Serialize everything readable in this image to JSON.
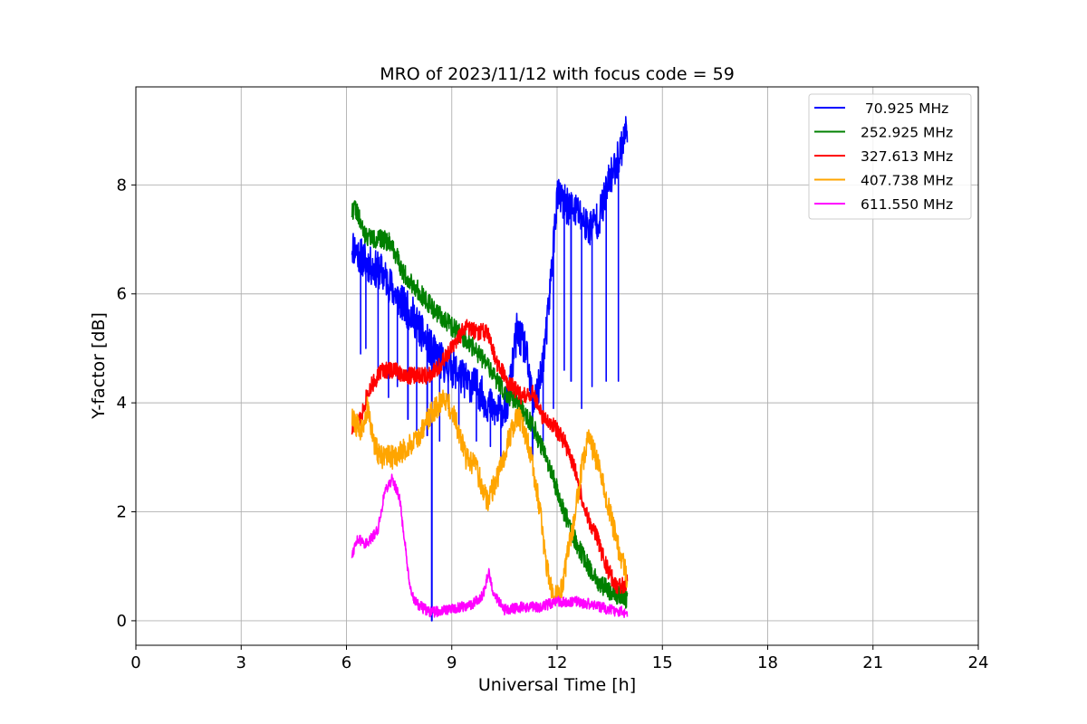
{
  "chart_data": {
    "type": "line",
    "title": "MRO of 2023/11/12 with focus code = 59",
    "xlabel": "Universal Time [h]",
    "ylabel": "Y-factor [dB]",
    "xlim": [
      0,
      24
    ],
    "ylim": [
      -0.45,
      9.8
    ],
    "xticks": [
      0,
      3,
      6,
      9,
      12,
      15,
      18,
      21,
      24
    ],
    "yticks": [
      0,
      2,
      4,
      6,
      8
    ],
    "grid": true,
    "legend_position": "top-right",
    "series": [
      {
        "name": " 70.925 MHz",
        "color": "#0000ff",
        "noise": 0.35,
        "points": [
          [
            6.15,
            6.9
          ],
          [
            6.4,
            6.7
          ],
          [
            6.7,
            6.5
          ],
          [
            7.0,
            6.4
          ],
          [
            7.3,
            6.1
          ],
          [
            7.6,
            5.8
          ],
          [
            7.9,
            5.6
          ],
          [
            8.2,
            5.2
          ],
          [
            8.5,
            4.9
          ],
          [
            8.8,
            4.7
          ],
          [
            9.1,
            4.6
          ],
          [
            9.4,
            4.4
          ],
          [
            9.7,
            4.3
          ],
          [
            10.0,
            4.0
          ],
          [
            10.3,
            3.8
          ],
          [
            10.6,
            4.0
          ],
          [
            10.85,
            5.3
          ],
          [
            11.1,
            5.0
          ],
          [
            11.3,
            4.0
          ],
          [
            11.5,
            4.3
          ],
          [
            11.7,
            5.3
          ],
          [
            11.85,
            6.5
          ],
          [
            12.0,
            7.8
          ],
          [
            12.3,
            7.6
          ],
          [
            12.6,
            7.5
          ],
          [
            12.9,
            7.2
          ],
          [
            13.2,
            7.4
          ],
          [
            13.5,
            8.1
          ],
          [
            13.8,
            8.6
          ],
          [
            14.0,
            9.1
          ]
        ],
        "dips": [
          [
            6.4,
            4.9
          ],
          [
            6.55,
            5.0
          ],
          [
            6.9,
            4.6
          ],
          [
            7.2,
            4.1
          ],
          [
            7.45,
            4.3
          ],
          [
            7.75,
            3.7
          ],
          [
            8.0,
            3.5
          ],
          [
            8.3,
            3.4
          ],
          [
            8.43,
            0.0
          ],
          [
            8.65,
            3.3
          ],
          [
            8.9,
            3.9
          ],
          [
            9.2,
            3.5
          ],
          [
            9.7,
            3.3
          ],
          [
            10.1,
            3.2
          ],
          [
            10.4,
            3.0
          ],
          [
            11.3,
            3.0
          ],
          [
            11.6,
            3.3
          ],
          [
            11.9,
            3.9
          ],
          [
            12.2,
            4.6
          ],
          [
            12.4,
            4.4
          ],
          [
            12.7,
            3.9
          ],
          [
            13.0,
            4.3
          ],
          [
            13.4,
            4.4
          ],
          [
            13.75,
            4.4
          ]
        ],
        "seed": 11
      },
      {
        "name": "252.925 MHz",
        "color": "#008000",
        "noise": 0.18,
        "points": [
          [
            6.15,
            7.5
          ],
          [
            6.25,
            7.6
          ],
          [
            6.5,
            7.1
          ],
          [
            6.8,
            7.0
          ],
          [
            7.1,
            7.0
          ],
          [
            7.3,
            6.9
          ],
          [
            7.6,
            6.4
          ],
          [
            8.0,
            6.1
          ],
          [
            8.5,
            5.7
          ],
          [
            9.0,
            5.4
          ],
          [
            9.5,
            5.1
          ],
          [
            10.0,
            4.7
          ],
          [
            10.5,
            4.2
          ],
          [
            11.0,
            3.9
          ],
          [
            11.3,
            3.6
          ],
          [
            11.6,
            3.1
          ],
          [
            11.9,
            2.6
          ],
          [
            12.2,
            2.0
          ],
          [
            12.5,
            1.5
          ],
          [
            12.8,
            1.1
          ],
          [
            13.2,
            0.7
          ],
          [
            13.6,
            0.5
          ],
          [
            14.0,
            0.4
          ]
        ],
        "seed": 22
      },
      {
        "name": "327.613 MHz",
        "color": "#ff0000",
        "noise": 0.16,
        "points": [
          [
            6.15,
            3.5
          ],
          [
            6.4,
            3.7
          ],
          [
            6.6,
            4.2
          ],
          [
            7.0,
            4.6
          ],
          [
            7.4,
            4.6
          ],
          [
            7.7,
            4.5
          ],
          [
            8.0,
            4.5
          ],
          [
            8.3,
            4.5
          ],
          [
            8.7,
            4.7
          ],
          [
            9.0,
            5.0
          ],
          [
            9.4,
            5.4
          ],
          [
            9.7,
            5.3
          ],
          [
            10.0,
            5.3
          ],
          [
            10.3,
            4.7
          ],
          [
            10.6,
            4.4
          ],
          [
            11.0,
            4.1
          ],
          [
            11.3,
            4.2
          ],
          [
            11.6,
            3.7
          ],
          [
            11.9,
            3.6
          ],
          [
            12.2,
            3.3
          ],
          [
            12.5,
            2.8
          ],
          [
            12.8,
            2.0
          ],
          [
            13.1,
            1.6
          ],
          [
            13.4,
            1.0
          ],
          [
            13.7,
            0.6
          ],
          [
            14.0,
            0.7
          ]
        ],
        "seed": 33
      },
      {
        "name": "407.738 MHz",
        "color": "#ffa500",
        "noise": 0.22,
        "points": [
          [
            6.15,
            3.7
          ],
          [
            6.4,
            3.5
          ],
          [
            6.6,
            3.9
          ],
          [
            6.8,
            3.2
          ],
          [
            7.0,
            3.0
          ],
          [
            7.3,
            3.0
          ],
          [
            7.6,
            3.1
          ],
          [
            8.0,
            3.3
          ],
          [
            8.4,
            3.8
          ],
          [
            8.8,
            4.1
          ],
          [
            9.1,
            3.7
          ],
          [
            9.4,
            3.0
          ],
          [
            9.7,
            2.8
          ],
          [
            10.0,
            2.2
          ],
          [
            10.3,
            2.6
          ],
          [
            10.6,
            3.3
          ],
          [
            10.9,
            3.8
          ],
          [
            11.2,
            3.2
          ],
          [
            11.5,
            2.1
          ],
          [
            11.7,
            1.0
          ],
          [
            11.9,
            0.4
          ],
          [
            12.1,
            0.5
          ],
          [
            12.3,
            1.2
          ],
          [
            12.5,
            1.9
          ],
          [
            12.7,
            2.8
          ],
          [
            12.9,
            3.4
          ],
          [
            13.2,
            2.8
          ],
          [
            13.5,
            2.0
          ],
          [
            13.8,
            1.2
          ],
          [
            14.0,
            0.8
          ]
        ],
        "seed": 44
      },
      {
        "name": "611.550 MHz",
        "color": "#ff00ff",
        "noise": 0.1,
        "points": [
          [
            6.15,
            1.2
          ],
          [
            6.3,
            1.5
          ],
          [
            6.6,
            1.4
          ],
          [
            6.9,
            1.7
          ],
          [
            7.1,
            2.4
          ],
          [
            7.3,
            2.6
          ],
          [
            7.5,
            2.3
          ],
          [
            7.65,
            1.5
          ],
          [
            7.8,
            0.6
          ],
          [
            8.0,
            0.3
          ],
          [
            8.4,
            0.15
          ],
          [
            8.8,
            0.2
          ],
          [
            9.2,
            0.25
          ],
          [
            9.6,
            0.3
          ],
          [
            9.9,
            0.5
          ],
          [
            10.05,
            0.9
          ],
          [
            10.2,
            0.5
          ],
          [
            10.5,
            0.2
          ],
          [
            11.0,
            0.25
          ],
          [
            11.5,
            0.25
          ],
          [
            12.0,
            0.35
          ],
          [
            12.5,
            0.35
          ],
          [
            13.0,
            0.3
          ],
          [
            13.5,
            0.2
          ],
          [
            14.0,
            0.15
          ]
        ],
        "seed": 55
      }
    ]
  }
}
